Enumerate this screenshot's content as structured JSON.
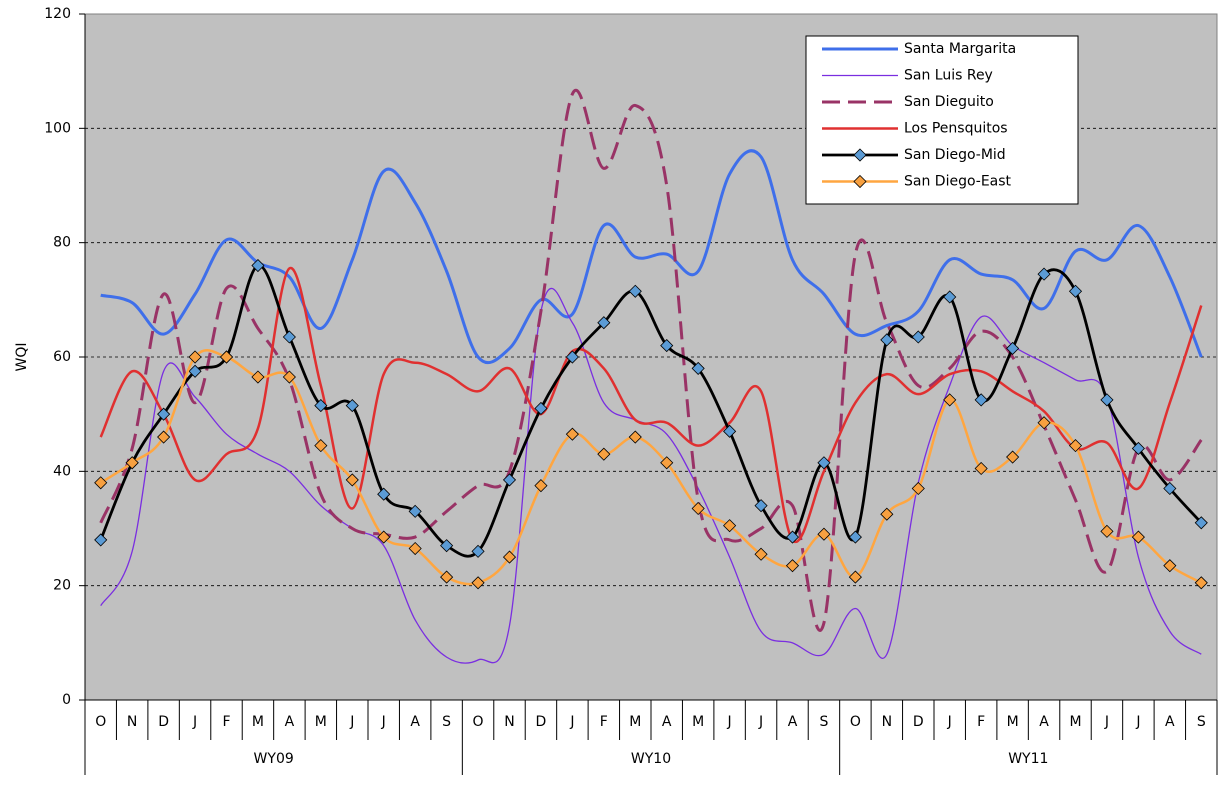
{
  "chart_data": {
    "type": "line",
    "y_label": "WQI",
    "categories": [
      "O",
      "N",
      "D",
      "J",
      "F",
      "M",
      "A",
      "M",
      "J",
      "J",
      "A",
      "S",
      "O",
      "N",
      "D",
      "J",
      "F",
      "M",
      "A",
      "M",
      "J",
      "J",
      "A",
      "S",
      "O",
      "N",
      "D",
      "J",
      "F",
      "M",
      "A",
      "M",
      "J",
      "J",
      "A",
      "S"
    ],
    "groups": [
      "WY09",
      "WY10",
      "WY11"
    ],
    "ylim": [
      0,
      120
    ],
    "yticks": [
      0,
      20,
      40,
      60,
      80,
      100,
      120
    ],
    "grid": true,
    "smooth": true,
    "background": "#c0c0c0",
    "legend": "top-right",
    "series": [
      {
        "name": "Santa Margarita",
        "color": "#3f6fea",
        "values": [
          70.8,
          69.5,
          64,
          71,
          80.5,
          76.5,
          74,
          65,
          77,
          92.5,
          87,
          75,
          60,
          61.5,
          70,
          67.5,
          83,
          77.5,
          78,
          75,
          92,
          95,
          77,
          71,
          64,
          65.5,
          68,
          77,
          74.5,
          73.5,
          68.5,
          78.5,
          77,
          83,
          74,
          60
        ]
      },
      {
        "name": "San Luis Rey",
        "color": "#7a2ee0",
        "values": [
          16.5,
          26,
          57.5,
          53,
          46.5,
          43,
          40,
          34,
          30,
          27,
          14,
          7.5,
          7,
          13,
          68,
          66,
          52,
          49,
          46.5,
          37,
          25,
          12,
          10,
          8,
          16,
          8,
          38,
          55,
          67,
          62,
          59,
          56,
          53,
          25,
          12,
          8
        ]
      },
      {
        "name": "San Dieguito",
        "color": "#993366",
        "dashed": true,
        "values": [
          31,
          44,
          71,
          52,
          72,
          65,
          56,
          36,
          30,
          29,
          28.5,
          33,
          37.5,
          40,
          68,
          106,
          93,
          104,
          90,
          35,
          28,
          30,
          34,
          13.5,
          78,
          66,
          55,
          58,
          64.5,
          60,
          48,
          35,
          22.5,
          44,
          38.5,
          45.5
        ]
      },
      {
        "name": "Los Pensquitos",
        "color": "#e03030",
        "values": [
          46,
          57.5,
          50,
          38.5,
          43,
          47.5,
          75.5,
          55,
          33.5,
          57,
          59,
          57,
          54,
          58,
          50,
          61,
          58,
          49,
          48.5,
          44.5,
          48.5,
          54,
          28,
          40,
          52,
          57,
          53.5,
          57,
          57.5,
          54,
          50.5,
          44,
          45,
          37,
          52,
          69
        ]
      },
      {
        "name": "San Diego-Mid",
        "color": "#000000",
        "marker": "diamond",
        "marker_color": "#5b9bd5",
        "values": [
          28,
          41.5,
          50,
          57.5,
          60,
          76,
          63.5,
          51.5,
          51.5,
          36,
          33,
          27,
          26,
          38.5,
          51,
          60,
          66,
          71.5,
          62,
          58,
          47,
          34,
          28.5,
          41.5,
          28.5,
          63,
          63.5,
          70.5,
          52.5,
          61.5,
          74.5,
          71.5,
          52.5,
          44,
          37,
          31
        ]
      },
      {
        "name": "San Diego-East",
        "color": "#ffa640",
        "marker": "diamond",
        "marker_color": "#f7a040",
        "values": [
          38,
          41.5,
          46,
          60,
          60,
          56.5,
          56.5,
          44.5,
          38.5,
          28.5,
          26.5,
          21.5,
          20.5,
          25,
          37.5,
          46.5,
          43,
          46,
          41.5,
          33.5,
          30.5,
          25.5,
          23.5,
          29,
          21.5,
          32.5,
          37,
          52.5,
          40.5,
          42.5,
          48.5,
          44.5,
          29.5,
          28.5,
          23.5,
          20.5
        ]
      }
    ]
  }
}
